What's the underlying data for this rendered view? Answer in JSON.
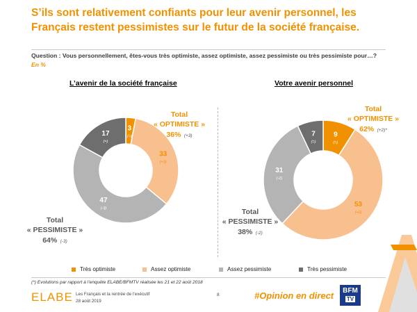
{
  "header": {
    "title": "S’ils sont relativement confiants pour leur avenir personnel, les Français restent pessimistes sur le futur de la société française.",
    "question": "Question : Vous personnellement, êtes-vous très optimiste, assez optimiste, assez pessimiste ou très pessimiste pour…?",
    "unit": "En %"
  },
  "colors": {
    "tres_optimiste": "#f29100",
    "assez_optimiste": "#f8c08f",
    "assez_pessimiste": "#b4b4b4",
    "tres_pessimiste": "#6e6e6e",
    "accent": "#f29100"
  },
  "chart_data": [
    {
      "type": "pie",
      "title": "L’avenir de la société française",
      "categories": [
        "Très optimiste",
        "Assez optimiste",
        "Assez pessimiste",
        "Très pessimiste"
      ],
      "values": [
        3,
        33,
        47,
        17
      ],
      "changes": [
        "(=)",
        "(+3)",
        "(-3)",
        "(=)"
      ],
      "totals": {
        "optimiste": {
          "label": "Total",
          "name": "« OPTIMISTE »",
          "value": "36%",
          "change": "(+3)"
        },
        "pessimiste": {
          "label": "Total",
          "name": "« PESSIMISTE »",
          "value": "64%",
          "change": "(-3)"
        }
      }
    },
    {
      "type": "pie",
      "title": "Votre avenir personnel",
      "categories": [
        "Très optimiste",
        "Assez optimiste",
        "Assez pessimiste",
        "Très pessimiste"
      ],
      "values": [
        9,
        53,
        31,
        7
      ],
      "changes": [
        "(=)",
        "(+2)",
        "(-2)",
        "(=)"
      ],
      "totals": {
        "optimiste": {
          "label": "Total",
          "name": "« OPTIMISTE »",
          "value": "62%",
          "change": "(+2)*"
        },
        "pessimiste": {
          "label": "Total",
          "name": "« PESSIMISTE »",
          "value": "38%",
          "change": "(-2)"
        }
      }
    }
  ],
  "legend": [
    "Très optimiste",
    "Assez optimiste",
    "Assez pessimiste",
    "Très pessimiste"
  ],
  "footer": {
    "footnote": "(*) Evolutions par rapport à l’enquête ELABE/BFMTV réalisée les 21 et 22 août 2018",
    "logo": "ELABE",
    "doc_title": "Les Français et la rentrée de l’exécutif",
    "date": "28 août 2019",
    "page": "8",
    "hashtag": "#Opinion en direct",
    "bfm": "BFM",
    "tv": "TV"
  }
}
